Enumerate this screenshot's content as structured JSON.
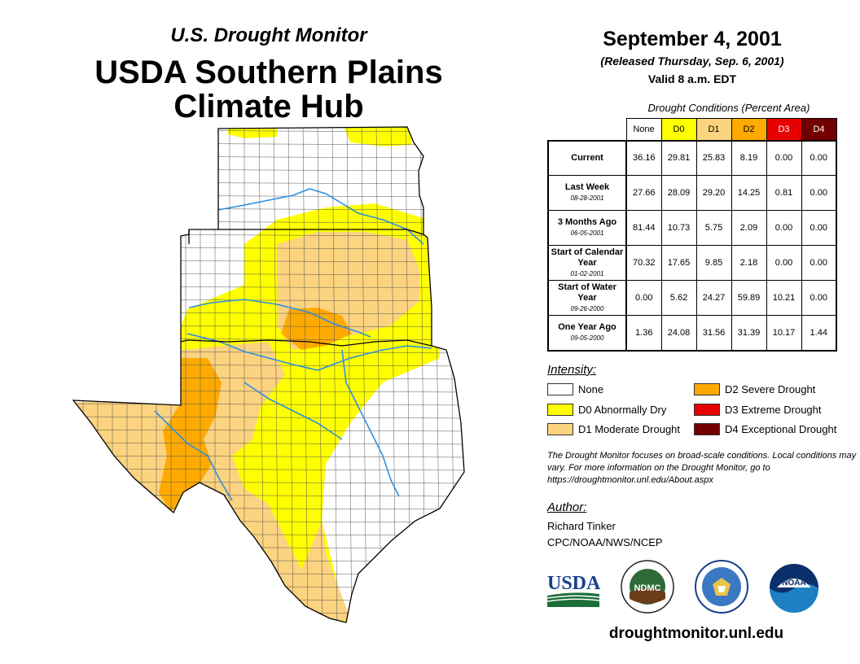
{
  "header": {
    "product": "U.S. Drought Monitor",
    "region_line1": "USDA Southern Plains",
    "region_line2": "Climate Hub",
    "date": "September 4, 2001",
    "released": "(Released Thursday, Sep. 6, 2001)",
    "valid": "Valid 8 a.m. EDT"
  },
  "table": {
    "caption": "Drought Conditions (Percent Area)",
    "columns": [
      "None",
      "D0",
      "D1",
      "D2",
      "D3",
      "D4"
    ],
    "column_colors": [
      "#ffffff",
      "#ffff00",
      "#fcd37f",
      "#ffaa00",
      "#e60000",
      "#730000"
    ],
    "column_text_colors": [
      "#000000",
      "#000000",
      "#000000",
      "#000000",
      "#ffffff",
      "#ffffff"
    ],
    "rows": [
      {
        "label": "Current",
        "date": "",
        "values": [
          "36.16",
          "29.81",
          "25.83",
          "8.19",
          "0.00",
          "0.00"
        ]
      },
      {
        "label": "Last Week",
        "date": "08-28-2001",
        "values": [
          "27.66",
          "28.09",
          "29.20",
          "14.25",
          "0.81",
          "0.00"
        ]
      },
      {
        "label": "3 Months Ago",
        "date": "06-05-2001",
        "values": [
          "81.44",
          "10.73",
          "5.75",
          "2.09",
          "0.00",
          "0.00"
        ]
      },
      {
        "label": "Start of Calendar Year",
        "date": "01-02-2001",
        "values": [
          "70.32",
          "17.65",
          "9.85",
          "2.18",
          "0.00",
          "0.00"
        ]
      },
      {
        "label": "Start of Water Year",
        "date": "09-26-2000",
        "values": [
          "0.00",
          "5.62",
          "24.27",
          "59.89",
          "10.21",
          "0.00"
        ]
      },
      {
        "label": "One Year Ago",
        "date": "09-05-2000",
        "values": [
          "1.36",
          "24.08",
          "31.56",
          "31.39",
          "10.17",
          "1.44"
        ]
      }
    ]
  },
  "legend": {
    "heading": "Intensity:",
    "items": [
      {
        "label": "None",
        "color": "#ffffff"
      },
      {
        "label": "D0 Abnormally Dry",
        "color": "#ffff00"
      },
      {
        "label": "D1 Moderate Drought",
        "color": "#fcd37f"
      },
      {
        "label": "D2 Severe Drought",
        "color": "#ffaa00"
      },
      {
        "label": "D3 Extreme Drought",
        "color": "#e60000"
      },
      {
        "label": "D4 Exceptional Drought",
        "color": "#730000"
      }
    ]
  },
  "note": "The Drought Monitor focuses on broad-scale conditions. Local conditions may vary. For more information on the Drought Monitor, go to https://droughtmonitor.unl.edu/About.aspx",
  "author": {
    "heading": "Author:",
    "name": "Richard Tinker",
    "org": "CPC/NOAA/NWS/NCEP"
  },
  "logos": [
    {
      "name": "usda-logo",
      "text": "USDA"
    },
    {
      "name": "ndmc-logo",
      "text": "NDMC"
    },
    {
      "name": "doc-seal-logo",
      "text": ""
    },
    {
      "name": "noaa-logo",
      "text": "NOAA"
    }
  ],
  "url": "droughtmonitor.unl.edu"
}
